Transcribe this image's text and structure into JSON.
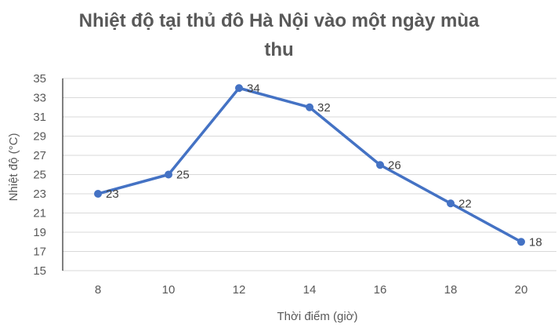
{
  "chart_data": {
    "type": "line",
    "title_lines": [
      "Nhiệt độ tại thủ đô Hà Nội vào một ngày mùa",
      "thu"
    ],
    "xlabel": "Thời điểm (giờ)",
    "ylabel": "Nhiệt độ (°C)",
    "categories": [
      "8",
      "10",
      "12",
      "14",
      "16",
      "18",
      "20"
    ],
    "series": [
      {
        "values": [
          23,
          25,
          34,
          32,
          26,
          22,
          18
        ]
      }
    ],
    "ylim": [
      15,
      35
    ],
    "yticks": [
      "35",
      "33",
      "31",
      "29",
      "27",
      "25",
      "23",
      "21",
      "19",
      "17",
      "15"
    ],
    "grid": true,
    "legend": "none",
    "colors": {
      "line": "#4472C4",
      "grid": "#D9D9D9",
      "axis": "#000000",
      "text": "#595959"
    }
  }
}
